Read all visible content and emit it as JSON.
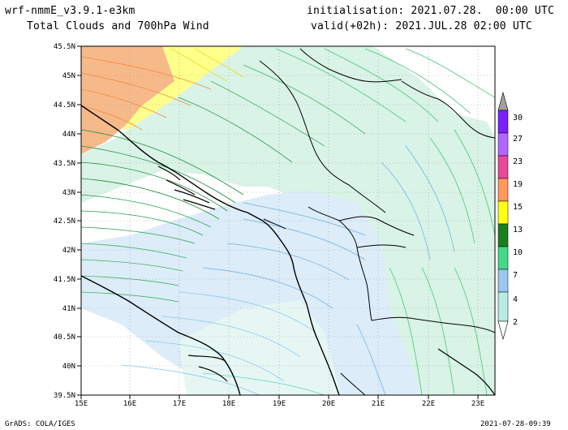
{
  "header": {
    "model": "wrf-nmmE_v3.9.1-e3km",
    "subtitle": "Total Clouds and 700hPa Wind",
    "init": "initialisation: 2021.07.28.  00:00 UTC",
    "valid": "valid(+02h): 2021.JUL.28 02:00 UTC"
  },
  "map": {
    "lon_labels": [
      "15E",
      "16E",
      "17E",
      "18E",
      "19E",
      "20E",
      "21E",
      "22E",
      "23E"
    ],
    "lat_labels": [
      "45.5N",
      "45N",
      "44.5N",
      "44N",
      "43.5N",
      "43N",
      "42.5N",
      "42N",
      "41.5N",
      "41N",
      "40.5N",
      "40N",
      "39.5N"
    ]
  },
  "colorbar": {
    "labels": [
      "30",
      "27",
      "23",
      "19",
      "15",
      "13",
      "10",
      "7",
      "4",
      "2"
    ],
    "colors": [
      "#7b1fff",
      "#b366ff",
      "#e8489a",
      "#ff9a5a",
      "#ffff14",
      "#1a801a",
      "#44d98a",
      "#99c8f2",
      "#b6ece4"
    ]
  },
  "footer": {
    "left": "GrADS: COLA/IGES",
    "right": "2021-07-28-09:39"
  }
}
